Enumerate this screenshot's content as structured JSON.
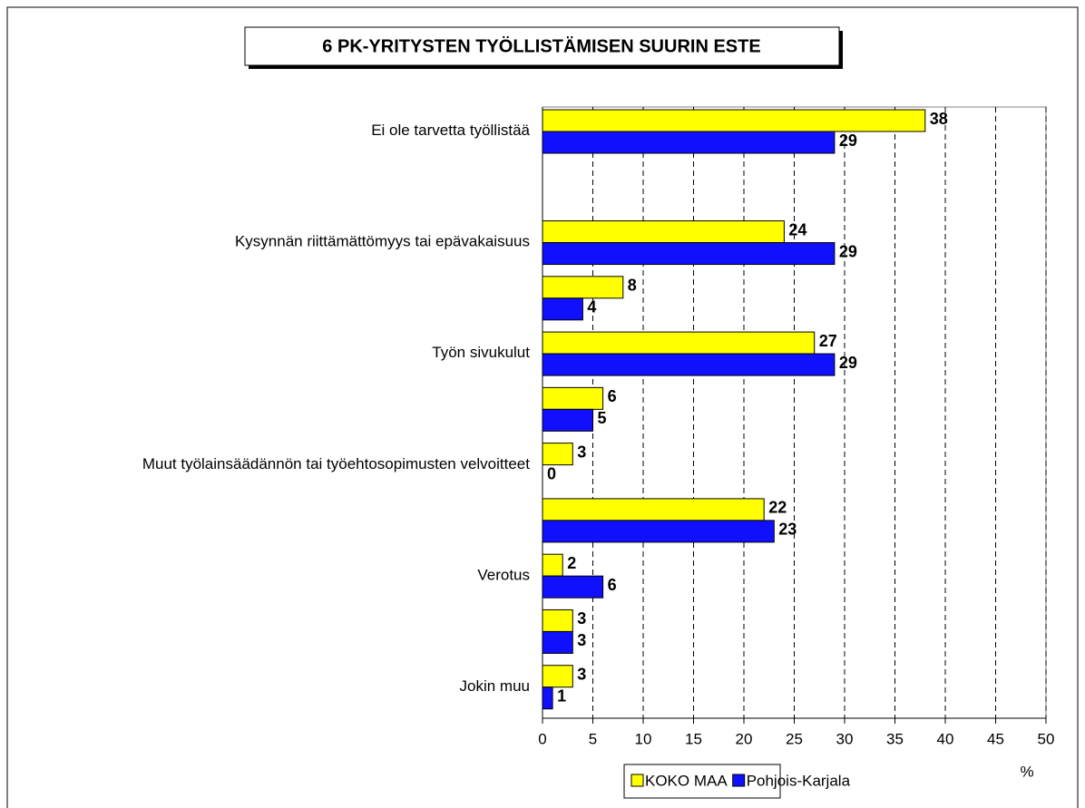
{
  "chart_data": {
    "type": "barh",
    "title": "6 PK-YRITYSTEN TYÖLLISTÄMISEN SUURIN ESTE",
    "categories": [
      "Ei ole tarvetta työllistää",
      null,
      "Kysynnän riittämättömyys tai epävakaisuus",
      null,
      "Työn sivukulut",
      null,
      "Muut työlainsäädännön tai työehtosopimusten velvoitteet",
      null,
      "Verotus",
      null,
      "Jokin muu"
    ],
    "series": [
      {
        "name": "KOKO MAA",
        "color": "#ffff00",
        "values": [
          38,
          null,
          24,
          8,
          27,
          6,
          3,
          22,
          2,
          3,
          3
        ]
      },
      {
        "name": "Pohjois-Karjala",
        "color": "#1010ff",
        "values": [
          29,
          null,
          29,
          4,
          29,
          5,
          0,
          23,
          6,
          3,
          1
        ]
      }
    ],
    "x_label": "%",
    "xlim": [
      0,
      50
    ],
    "xticks": [
      0,
      5,
      10,
      15,
      20,
      25,
      30,
      35,
      40,
      45,
      50
    ],
    "grid": true,
    "legend": "bottom"
  }
}
